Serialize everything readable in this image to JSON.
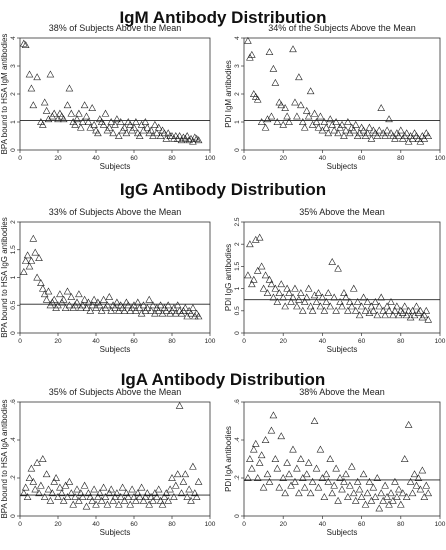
{
  "sections": [
    {
      "title": "IgM Antibody Distribution"
    },
    {
      "title": "IgG Antibody Distribution"
    },
    {
      "title": "IgA Antibody Distribution"
    }
  ],
  "chart_data": [
    {
      "type": "scatter",
      "title": "38% of Subjects Above the Mean",
      "xlabel": "Subjects",
      "ylabel": "BPA bound to HSA IgM antibodies",
      "xlim": [
        0,
        100
      ],
      "ylim": [
        0,
        4
      ],
      "xticks": [
        0,
        20,
        40,
        60,
        80,
        100
      ],
      "yticks": [
        0,
        1,
        2,
        3,
        4
      ],
      "mean": 1.05,
      "x": [
        2,
        3,
        5,
        6,
        7,
        9,
        11,
        12,
        13,
        14,
        15,
        16,
        17,
        18,
        20,
        21,
        22,
        23,
        25,
        26,
        27,
        28,
        29,
        30,
        31,
        32,
        33,
        34,
        35,
        36,
        37,
        38,
        39,
        40,
        41,
        42,
        43,
        44,
        45,
        46,
        47,
        48,
        49,
        50,
        51,
        52,
        53,
        54,
        55,
        56,
        57,
        58,
        59,
        60,
        61,
        62,
        63,
        64,
        65,
        66,
        67,
        68,
        69,
        70,
        71,
        72,
        73,
        74,
        75,
        76,
        77,
        78,
        79,
        80,
        81,
        82,
        83,
        84,
        85,
        86,
        87,
        88,
        89,
        90,
        91,
        92,
        93,
        94
      ],
      "y": [
        3.8,
        3.75,
        2.7,
        2.2,
        1.6,
        2.6,
        1.0,
        0.9,
        1.7,
        1.4,
        1.1,
        2.7,
        1.2,
        1.3,
        1.1,
        1.3,
        1.2,
        1.1,
        1.6,
        2.2,
        1.3,
        1.0,
        0.9,
        1.1,
        1.3,
        0.8,
        1.0,
        1.6,
        1.2,
        1.0,
        0.8,
        1.5,
        0.9,
        0.7,
        0.6,
        1.1,
        1.0,
        0.9,
        1.3,
        0.7,
        0.8,
        1.0,
        0.6,
        0.9,
        1.1,
        0.5,
        1.0,
        0.7,
        0.8,
        0.6,
        1.0,
        0.9,
        0.7,
        0.8,
        1.0,
        0.6,
        0.5,
        0.9,
        0.7,
        1.0,
        0.8,
        0.6,
        0.7,
        0.5,
        0.9,
        0.6,
        0.8,
        0.5,
        0.7,
        0.6,
        0.4,
        0.6,
        0.5,
        0.5,
        0.4,
        0.5,
        0.4,
        0.5,
        0.35,
        0.45,
        0.4,
        0.5,
        0.35,
        0.4,
        0.3,
        0.45,
        0.4,
        0.35
      ]
    },
    {
      "type": "scatter",
      "title": "34% of the Subjects Above the Mean",
      "xlabel": "Subjects",
      "ylabel": "PDI IgM antibodies",
      "xlim": [
        0,
        100
      ],
      "ylim": [
        0,
        4
      ],
      "xticks": [
        0,
        20,
        40,
        60,
        80,
        100
      ],
      "yticks": [
        0,
        1,
        2,
        3,
        4
      ],
      "mean": 1.05,
      "x": [
        2,
        3,
        4,
        5,
        6,
        7,
        9,
        11,
        12,
        13,
        14,
        15,
        16,
        17,
        18,
        19,
        20,
        21,
        22,
        23,
        25,
        26,
        27,
        28,
        29,
        30,
        31,
        32,
        33,
        34,
        35,
        36,
        37,
        38,
        39,
        40,
        41,
        42,
        43,
        44,
        45,
        46,
        47,
        48,
        49,
        50,
        51,
        52,
        53,
        54,
        55,
        56,
        57,
        58,
        59,
        60,
        61,
        62,
        63,
        64,
        65,
        66,
        67,
        68,
        69,
        70,
        71,
        72,
        73,
        74,
        75,
        76,
        77,
        78,
        79,
        80,
        81,
        82,
        83,
        84,
        85,
        86,
        87,
        88,
        89,
        90,
        91,
        92,
        93,
        94
      ],
      "y": [
        3.9,
        3.3,
        3.4,
        2.0,
        1.9,
        1.8,
        1.0,
        0.8,
        1.1,
        3.5,
        1.2,
        2.9,
        2.4,
        1.0,
        1.7,
        1.6,
        0.9,
        1.5,
        1.2,
        1.0,
        3.6,
        1.7,
        1.2,
        2.6,
        1.6,
        1.0,
        0.8,
        1.4,
        1.2,
        2.1,
        0.9,
        1.3,
        1.0,
        0.8,
        1.2,
        0.7,
        1.0,
        0.8,
        0.6,
        1.1,
        0.9,
        0.7,
        1.0,
        0.6,
        0.8,
        0.9,
        0.5,
        0.7,
        1.0,
        0.6,
        0.8,
        0.7,
        0.9,
        0.5,
        0.6,
        0.8,
        0.7,
        0.5,
        0.6,
        0.8,
        0.4,
        0.7,
        0.6,
        0.5,
        0.7,
        1.5,
        0.6,
        0.5,
        0.7,
        1.1,
        0.6,
        0.5,
        0.4,
        0.6,
        0.5,
        0.7,
        0.4,
        0.5,
        0.6,
        0.3,
        0.5,
        0.4,
        0.6,
        0.5,
        0.4,
        0.3,
        0.5,
        0.4,
        0.6,
        0.5
      ]
    },
    {
      "type": "scatter",
      "title": "33% of Subjects Above the Mean",
      "xlabel": "Subjects",
      "ylabel": "BPA bound to HSA IgG antibodies",
      "xlim": [
        0,
        100
      ],
      "ylim": [
        0,
        2
      ],
      "xticks": [
        0,
        20,
        40,
        60,
        80,
        100
      ],
      "yticks": [
        0,
        0.5,
        1,
        1.5,
        2
      ],
      "mean": 0.52,
      "x": [
        2,
        3,
        4,
        5,
        6,
        7,
        8,
        9,
        10,
        11,
        12,
        13,
        14,
        15,
        16,
        17,
        18,
        19,
        20,
        21,
        22,
        23,
        24,
        25,
        26,
        27,
        28,
        29,
        30,
        31,
        32,
        33,
        34,
        35,
        36,
        37,
        38,
        39,
        40,
        41,
        42,
        43,
        44,
        45,
        46,
        47,
        48,
        49,
        50,
        51,
        52,
        53,
        54,
        55,
        56,
        57,
        58,
        59,
        60,
        61,
        62,
        63,
        64,
        65,
        66,
        67,
        68,
        69,
        70,
        71,
        72,
        73,
        74,
        75,
        76,
        77,
        78,
        79,
        80,
        81,
        82,
        83,
        84,
        85,
        86,
        87,
        88,
        89,
        90,
        91,
        92,
        93,
        94
      ],
      "y": [
        1.1,
        1.3,
        1.4,
        1.2,
        1.3,
        1.7,
        1.45,
        1.0,
        1.35,
        0.9,
        0.8,
        0.7,
        0.6,
        0.75,
        0.5,
        0.55,
        0.6,
        0.45,
        0.5,
        0.7,
        0.55,
        0.6,
        0.45,
        0.75,
        0.5,
        0.65,
        0.45,
        0.5,
        0.55,
        0.7,
        0.45,
        0.5,
        0.6,
        0.45,
        0.55,
        0.4,
        0.5,
        0.6,
        0.45,
        0.55,
        0.5,
        0.4,
        0.6,
        0.45,
        0.5,
        0.65,
        0.4,
        0.5,
        0.45,
        0.55,
        0.4,
        0.5,
        0.45,
        0.4,
        0.55,
        0.5,
        0.4,
        0.45,
        0.5,
        0.4,
        0.55,
        0.45,
        0.35,
        0.5,
        0.4,
        0.45,
        0.6,
        0.4,
        0.5,
        0.35,
        0.45,
        0.4,
        0.5,
        0.35,
        0.45,
        0.4,
        0.5,
        0.35,
        0.4,
        0.45,
        0.35,
        0.5,
        0.4,
        0.35,
        0.4,
        0.45,
        0.3,
        0.4,
        0.35,
        0.45,
        0.3,
        0.35,
        0.3
      ]
    },
    {
      "type": "scatter",
      "title": "35% Above the Mean",
      "xlabel": "Subjects",
      "ylabel": "PDI IgG antibodies",
      "xlim": [
        0,
        100
      ],
      "ylim": [
        0,
        2.5
      ],
      "xticks": [
        0,
        20,
        40,
        60,
        80,
        100
      ],
      "yticks": [
        0,
        0.5,
        1,
        1.5,
        2,
        2.5
      ],
      "mean": 0.75,
      "x": [
        2,
        3,
        4,
        5,
        6,
        7,
        8,
        9,
        10,
        11,
        12,
        13,
        14,
        15,
        16,
        17,
        18,
        19,
        20,
        21,
        22,
        23,
        24,
        25,
        26,
        27,
        28,
        29,
        30,
        31,
        32,
        33,
        34,
        35,
        36,
        37,
        38,
        39,
        40,
        41,
        42,
        43,
        44,
        45,
        46,
        47,
        48,
        49,
        50,
        51,
        52,
        53,
        54,
        55,
        56,
        57,
        58,
        59,
        60,
        61,
        62,
        63,
        64,
        65,
        66,
        67,
        68,
        69,
        70,
        71,
        72,
        73,
        74,
        75,
        76,
        77,
        78,
        79,
        80,
        81,
        82,
        83,
        84,
        85,
        86,
        87,
        88,
        89,
        90,
        91,
        92,
        93,
        94
      ],
      "y": [
        1.3,
        2.0,
        1.1,
        1.2,
        2.1,
        1.4,
        2.15,
        1.5,
        1.0,
        1.3,
        0.9,
        1.2,
        1.1,
        0.8,
        1.0,
        0.7,
        0.9,
        1.1,
        0.8,
        0.6,
        1.0,
        0.9,
        0.7,
        0.8,
        1.0,
        0.6,
        0.75,
        0.9,
        0.5,
        0.7,
        0.8,
        1.0,
        0.6,
        0.5,
        0.85,
        0.7,
        0.9,
        0.6,
        0.8,
        0.5,
        0.7,
        0.9,
        0.6,
        1.6,
        0.8,
        0.5,
        1.45,
        0.7,
        0.6,
        0.9,
        0.8,
        0.5,
        0.7,
        0.6,
        1.0,
        0.5,
        0.7,
        0.4,
        0.6,
        0.8,
        0.5,
        0.7,
        0.45,
        0.6,
        0.5,
        0.7,
        0.4,
        0.6,
        0.8,
        0.5,
        0.4,
        0.6,
        0.5,
        0.7,
        0.4,
        0.5,
        0.6,
        0.4,
        0.5,
        0.45,
        0.6,
        0.4,
        0.5,
        0.35,
        0.5,
        0.4,
        0.6,
        0.45,
        0.5,
        0.35,
        0.4,
        0.5,
        0.3
      ]
    },
    {
      "type": "scatter",
      "title": "35% of Subjects Above the Mean",
      "xlabel": "Subjects",
      "ylabel": "BPA bound to HSA IgA antibodies",
      "xlim": [
        0,
        100
      ],
      "ylim": [
        0,
        0.6
      ],
      "xticks": [
        0,
        20,
        40,
        60,
        80,
        100
      ],
      "yticks": [
        0,
        0.2,
        0.4,
        0.6
      ],
      "ytick_labels": [
        "0",
        ".2",
        ".4",
        ".6"
      ],
      "mean": 0.11,
      "x": [
        2,
        3,
        4,
        5,
        6,
        7,
        8,
        9,
        10,
        11,
        12,
        13,
        14,
        15,
        16,
        17,
        18,
        19,
        20,
        21,
        22,
        23,
        24,
        25,
        26,
        27,
        28,
        29,
        30,
        31,
        32,
        33,
        34,
        35,
        36,
        37,
        38,
        39,
        40,
        41,
        42,
        43,
        44,
        45,
        46,
        47,
        48,
        49,
        50,
        51,
        52,
        53,
        54,
        55,
        56,
        57,
        58,
        59,
        60,
        61,
        62,
        63,
        64,
        65,
        66,
        67,
        68,
        69,
        70,
        71,
        72,
        73,
        74,
        75,
        76,
        77,
        78,
        79,
        80,
        81,
        82,
        83,
        84,
        85,
        86,
        87,
        88,
        89,
        90,
        91,
        92,
        93,
        94
      ],
      "y": [
        0.12,
        0.15,
        0.1,
        0.2,
        0.25,
        0.18,
        0.14,
        0.28,
        0.12,
        0.16,
        0.3,
        0.1,
        0.22,
        0.14,
        0.08,
        0.12,
        0.18,
        0.2,
        0.1,
        0.15,
        0.12,
        0.08,
        0.16,
        0.1,
        0.18,
        0.12,
        0.06,
        0.1,
        0.14,
        0.08,
        0.12,
        0.1,
        0.16,
        0.05,
        0.12,
        0.1,
        0.08,
        0.14,
        0.06,
        0.1,
        0.12,
        0.08,
        0.15,
        0.1,
        0.06,
        0.12,
        0.14,
        0.08,
        0.1,
        0.12,
        0.06,
        0.1,
        0.15,
        0.08,
        0.12,
        0.1,
        0.06,
        0.14,
        0.1,
        0.08,
        0.12,
        0.1,
        0.15,
        0.08,
        0.1,
        0.12,
        0.06,
        0.1,
        0.08,
        0.12,
        0.1,
        0.14,
        0.08,
        0.06,
        0.1,
        0.12,
        0.08,
        0.14,
        0.2,
        0.1,
        0.16,
        0.22,
        0.58,
        0.12,
        0.18,
        0.22,
        0.1,
        0.14,
        0.08,
        0.26,
        0.12,
        0.1,
        0.18
      ]
    },
    {
      "type": "scatter",
      "title": "38% Above the Mean",
      "xlabel": "Subjects",
      "ylabel": "PDI IgA antibodies",
      "xlim": [
        0,
        100
      ],
      "ylim": [
        0,
        0.6
      ],
      "xticks": [
        0,
        20,
        40,
        60,
        80,
        100
      ],
      "yticks": [
        0,
        0.2,
        0.4,
        0.6
      ],
      "ytick_labels": [
        "0",
        ".2",
        ".4",
        ".6"
      ],
      "mean": 0.19,
      "x": [
        2,
        3,
        4,
        5,
        6,
        7,
        8,
        9,
        10,
        11,
        12,
        13,
        14,
        15,
        16,
        17,
        18,
        19,
        20,
        21,
        22,
        23,
        24,
        25,
        26,
        27,
        28,
        29,
        30,
        31,
        32,
        33,
        34,
        35,
        36,
        37,
        38,
        39,
        40,
        41,
        42,
        43,
        44,
        45,
        46,
        47,
        48,
        49,
        50,
        51,
        52,
        53,
        54,
        55,
        56,
        57,
        58,
        59,
        60,
        61,
        62,
        63,
        64,
        65,
        66,
        67,
        68,
        69,
        70,
        71,
        72,
        73,
        74,
        75,
        76,
        77,
        78,
        79,
        80,
        81,
        82,
        83,
        84,
        85,
        86,
        87,
        88,
        89,
        90,
        91,
        92,
        93,
        94
      ],
      "y": [
        0.2,
        0.3,
        0.25,
        0.35,
        0.38,
        0.2,
        0.28,
        0.32,
        0.15,
        0.4,
        0.22,
        0.18,
        0.45,
        0.53,
        0.3,
        0.25,
        0.15,
        0.42,
        0.2,
        0.12,
        0.28,
        0.22,
        0.16,
        0.35,
        0.18,
        0.25,
        0.12,
        0.3,
        0.2,
        0.15,
        0.22,
        0.28,
        0.12,
        0.18,
        0.5,
        0.25,
        0.15,
        0.35,
        0.2,
        0.1,
        0.22,
        0.18,
        0.3,
        0.12,
        0.16,
        0.25,
        0.08,
        0.2,
        0.14,
        0.18,
        0.22,
        0.1,
        0.16,
        0.26,
        0.12,
        0.08,
        0.18,
        0.14,
        0.1,
        0.22,
        0.06,
        0.12,
        0.18,
        0.08,
        0.15,
        0.1,
        0.2,
        0.04,
        0.12,
        0.08,
        0.16,
        0.1,
        0.06,
        0.12,
        0.08,
        0.18,
        0.1,
        0.14,
        0.06,
        0.12,
        0.3,
        0.1,
        0.48,
        0.18,
        0.12,
        0.22,
        0.16,
        0.2,
        0.14,
        0.24,
        0.1,
        0.16,
        0.12
      ]
    }
  ]
}
